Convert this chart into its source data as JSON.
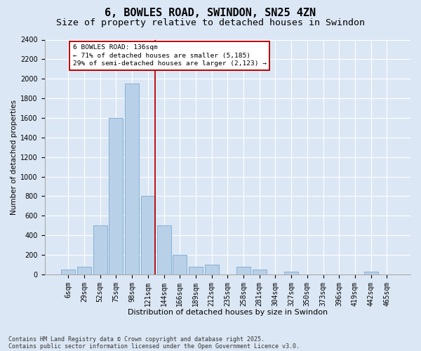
{
  "title": "6, BOWLES ROAD, SWINDON, SN25 4ZN",
  "subtitle": "Size of property relative to detached houses in Swindon",
  "xlabel": "Distribution of detached houses by size in Swindon",
  "ylabel": "Number of detached properties",
  "categories": [
    "6sqm",
    "29sqm",
    "52sqm",
    "75sqm",
    "98sqm",
    "121sqm",
    "144sqm",
    "166sqm",
    "189sqm",
    "212sqm",
    "235sqm",
    "258sqm",
    "281sqm",
    "304sqm",
    "327sqm",
    "350sqm",
    "373sqm",
    "396sqm",
    "419sqm",
    "442sqm",
    "465sqm"
  ],
  "values": [
    50,
    75,
    500,
    1600,
    1950,
    800,
    500,
    200,
    75,
    100,
    0,
    75,
    50,
    0,
    25,
    0,
    0,
    0,
    0,
    25,
    0
  ],
  "bar_color": "#b8d0e8",
  "bar_edgecolor": "#7aaad0",
  "vline_color": "#bb0000",
  "vline_pos": 5.43,
  "annotation_text": "6 BOWLES ROAD: 136sqm\n← 71% of detached houses are smaller (5,185)\n29% of semi-detached houses are larger (2,123) →",
  "ann_edge_color": "#bb0000",
  "ylim": [
    0,
    2400
  ],
  "yticks": [
    0,
    200,
    400,
    600,
    800,
    1000,
    1200,
    1400,
    1600,
    1800,
    2000,
    2200,
    2400
  ],
  "bg_color": "#dce7f5",
  "title_fontsize": 11,
  "subtitle_fontsize": 9.5,
  "tick_fontsize": 7,
  "footer": "Contains HM Land Registry data © Crown copyright and database right 2025.\nContains public sector information licensed under the Open Government Licence v3.0.",
  "footer_fontsize": 6
}
